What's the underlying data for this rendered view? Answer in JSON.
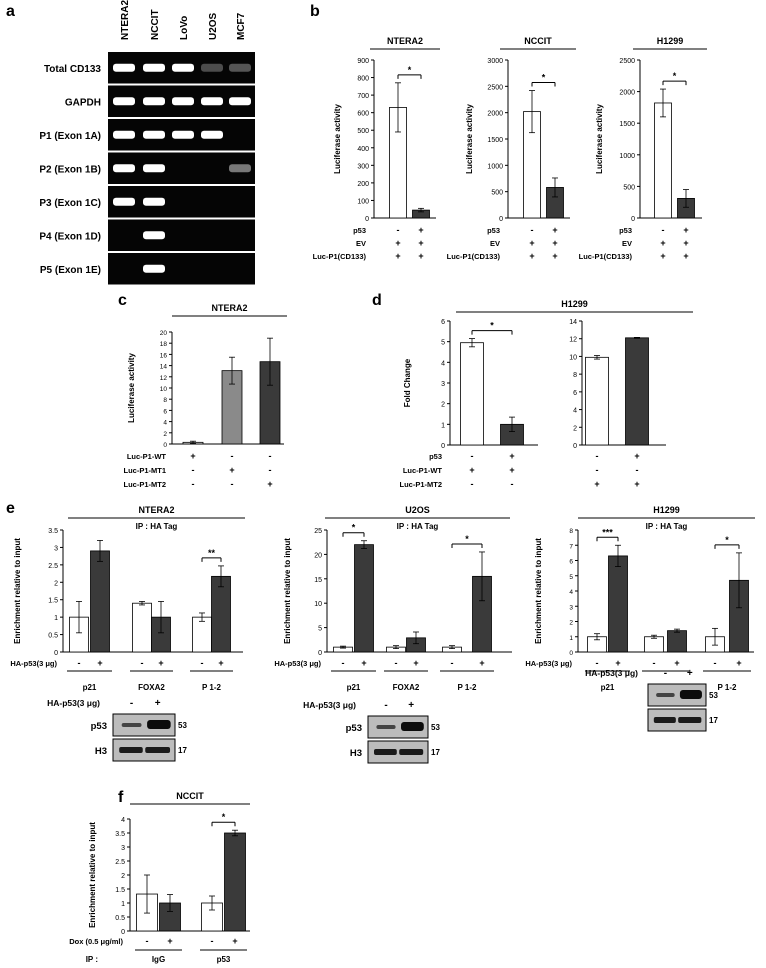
{
  "panels": {
    "a": {
      "label": "a",
      "lanes": [
        "NTERA2",
        "NCCIT",
        "LoVo",
        "U2OS",
        "MCF7"
      ],
      "rows": [
        "Total CD133",
        "GAPDH",
        "P1 (Exon 1A)",
        "P2 (Exon 1B)",
        "P3 (Exon 1C)",
        "P4 (Exon 1D)",
        "P5 (Exon 1E)"
      ],
      "band_intensity": [
        [
          1,
          1,
          1,
          0.35,
          0.4
        ],
        [
          1,
          1,
          1,
          1,
          1
        ],
        [
          1,
          1,
          1,
          1,
          0
        ],
        [
          1,
          1,
          0,
          0,
          0.55
        ],
        [
          1,
          1,
          0,
          0,
          0
        ],
        [
          0,
          1,
          0,
          0,
          0
        ],
        [
          0,
          1,
          0,
          0,
          0
        ]
      ]
    },
    "b": {
      "label": "b"
    },
    "c": {
      "label": "c"
    },
    "d": {
      "label": "d"
    },
    "e": {
      "label": "e"
    },
    "f": {
      "label": "f"
    }
  },
  "chart_data": [
    {
      "id": "b1",
      "type": "bar",
      "title": "NTERA2",
      "ylabel": "Luciferase activity",
      "ylim": [
        0,
        900
      ],
      "yticks": [
        0,
        100,
        200,
        300,
        400,
        500,
        600,
        700,
        800,
        900
      ],
      "values": [
        630,
        45
      ],
      "errors": [
        140,
        10
      ],
      "colors": [
        "#ffffff",
        "#3a3a3a"
      ],
      "significance": [
        {
          "from": 0,
          "to": 1,
          "label": "*"
        }
      ],
      "conditions": [
        {
          "label": "p53",
          "values": [
            "-",
            "+"
          ]
        },
        {
          "label": "EV",
          "values": [
            "+",
            "+"
          ]
        },
        {
          "label": "Luc-P1(CD133)",
          "values": [
            "+",
            "+"
          ]
        }
      ]
    },
    {
      "id": "b2",
      "type": "bar",
      "title": "NCCIT",
      "ylabel": "Luciferase activity",
      "ylim": [
        0,
        3000
      ],
      "yticks": [
        0,
        500,
        1000,
        1500,
        2000,
        2500,
        3000
      ],
      "values": [
        2020,
        580
      ],
      "errors": [
        400,
        180
      ],
      "colors": [
        "#ffffff",
        "#3a3a3a"
      ],
      "significance": [
        {
          "from": 0,
          "to": 1,
          "label": "*"
        }
      ],
      "conditions": [
        {
          "label": "p53",
          "values": [
            "-",
            "+"
          ]
        },
        {
          "label": "EV",
          "values": [
            "+",
            "+"
          ]
        },
        {
          "label": "Luc-P1(CD133)",
          "values": [
            "+",
            "+"
          ]
        }
      ]
    },
    {
      "id": "b3",
      "type": "bar",
      "title": "H1299",
      "ylabel": "Luciferase activity",
      "ylim": [
        0,
        2500
      ],
      "yticks": [
        0,
        500,
        1000,
        1500,
        2000,
        2500
      ],
      "values": [
        1820,
        310
      ],
      "errors": [
        220,
        140
      ],
      "colors": [
        "#ffffff",
        "#3a3a3a"
      ],
      "significance": [
        {
          "from": 0,
          "to": 1,
          "label": "*"
        }
      ],
      "conditions": [
        {
          "label": "p53",
          "values": [
            "-",
            "+"
          ]
        },
        {
          "label": "EV",
          "values": [
            "+",
            "+"
          ]
        },
        {
          "label": "Luc-P1(CD133)",
          "values": [
            "+",
            "+"
          ]
        }
      ]
    },
    {
      "id": "c",
      "type": "bar",
      "title": "NTERA2",
      "ylabel": "Luciferase activity",
      "ylim": [
        0,
        20
      ],
      "yticks": [
        0,
        2,
        4,
        6,
        8,
        10,
        12,
        14,
        16,
        18,
        20
      ],
      "values": [
        0.3,
        13.1,
        14.7
      ],
      "errors": [
        0.2,
        2.4,
        4.2
      ],
      "colors": [
        "#dddddd",
        "#8a8a8a",
        "#3a3a3a"
      ],
      "significance": [],
      "conditions": [
        {
          "label": "Luc-P1-WT",
          "values": [
            "+",
            "-",
            "-"
          ]
        },
        {
          "label": "Luc-P1-MT1",
          "values": [
            "-",
            "+",
            "-"
          ]
        },
        {
          "label": "Luc-P1-MT2",
          "values": [
            "-",
            "-",
            "+"
          ]
        }
      ]
    },
    {
      "id": "d1",
      "type": "bar",
      "title": "H1299",
      "ylabel": "Fold Change",
      "ylim": [
        0,
        6
      ],
      "yticks": [
        0,
        1,
        2,
        3,
        4,
        5,
        6
      ],
      "values": [
        4.95,
        1.0
      ],
      "errors": [
        0.2,
        0.35
      ],
      "colors": [
        "#ffffff",
        "#3a3a3a"
      ],
      "significance": [
        {
          "from": 0,
          "to": 1,
          "label": "*"
        }
      ]
    },
    {
      "id": "d2",
      "type": "bar",
      "title": "",
      "ylim": [
        0,
        14
      ],
      "yticks": [
        0,
        2,
        4,
        6,
        8,
        10,
        12,
        14
      ],
      "values": [
        9.9,
        12.1
      ],
      "errors": [
        0.2,
        0.05
      ],
      "colors": [
        "#ffffff",
        "#3a3a3a"
      ],
      "significance": [],
      "conditions": [
        {
          "label": "p53",
          "values": [
            "-",
            "+",
            "-",
            "+"
          ]
        },
        {
          "label": "Luc-P1-WT",
          "values": [
            "+",
            "+",
            "-",
            "-"
          ]
        },
        {
          "label": "Luc-P1-MT2",
          "values": [
            "-",
            "-",
            "+",
            "+"
          ]
        }
      ]
    },
    {
      "id": "e1",
      "type": "bar",
      "title": "NTERA2",
      "subtitle": "IP : HA Tag",
      "ylabel": "Enrichment relative to input",
      "ylim": [
        0,
        3.5
      ],
      "yticks": [
        0,
        0.5,
        1,
        1.5,
        2,
        2.5,
        3,
        3.5
      ],
      "groups": [
        "p21",
        "FOXA2",
        "P 1-2"
      ],
      "values": [
        [
          1.0,
          2.9
        ],
        [
          1.4,
          1.0
        ],
        [
          1.0,
          2.17
        ]
      ],
      "errors": [
        [
          0.45,
          0.3
        ],
        [
          0.05,
          0.45
        ],
        [
          0.12,
          0.3
        ]
      ],
      "colors": [
        "#ffffff",
        "#3a3a3a"
      ],
      "significance": [
        {
          "group": 2,
          "label": "**"
        }
      ],
      "xcond_label": "HA-p53(3 μg)",
      "xcond": [
        "-",
        "+"
      ]
    },
    {
      "id": "e2",
      "type": "bar",
      "title": "U2OS",
      "subtitle": "IP : HA Tag",
      "ylabel": "Enrichment relative to input",
      "ylim": [
        0,
        25
      ],
      "yticks": [
        0,
        5,
        10,
        15,
        20,
        25
      ],
      "groups": [
        "p21",
        "FOXA2",
        "P 1-2"
      ],
      "values": [
        [
          1.0,
          22.0
        ],
        [
          1.0,
          2.9
        ],
        [
          1.0,
          15.5
        ]
      ],
      "errors": [
        [
          0.2,
          0.8
        ],
        [
          0.3,
          1.2
        ],
        [
          0.3,
          5.0
        ]
      ],
      "colors": [
        "#ffffff",
        "#3a3a3a"
      ],
      "significance": [
        {
          "group": 0,
          "label": "*"
        },
        {
          "group": 2,
          "label": "*"
        }
      ],
      "xcond_label": "HA-p53(3 μg)",
      "xcond": [
        "-",
        "+"
      ]
    },
    {
      "id": "e3",
      "type": "bar",
      "title": "H1299",
      "subtitle": "IP : HA Tag",
      "ylabel": "Enrichment relative to input",
      "ylim": [
        0,
        8
      ],
      "yticks": [
        0,
        1,
        2,
        3,
        4,
        5,
        6,
        7,
        8
      ],
      "groups": [
        "p21",
        "FOXA2",
        "P 1-2"
      ],
      "values": [
        [
          1.0,
          6.3
        ],
        [
          1.0,
          1.4
        ],
        [
          1.0,
          4.7
        ]
      ],
      "errors": [
        [
          0.2,
          0.7
        ],
        [
          0.1,
          0.1
        ],
        [
          0.55,
          1.8
        ]
      ],
      "colors": [
        "#ffffff",
        "#3a3a3a"
      ],
      "significance": [
        {
          "group": 0,
          "label": "***"
        },
        {
          "group": 2,
          "label": "*"
        }
      ],
      "xcond_label": "HA-p53(3 μg)",
      "xcond": [
        "-",
        "+"
      ]
    },
    {
      "id": "f",
      "type": "bar",
      "title": "NCCIT",
      "ylabel": "Enrichment relative to input",
      "ylim": [
        0,
        4
      ],
      "yticks": [
        0,
        0.5,
        1,
        1.5,
        2,
        2.5,
        3,
        3.5,
        4
      ],
      "groups": [
        "IgG",
        "p53"
      ],
      "values": [
        [
          1.32,
          1.0
        ],
        [
          1.0,
          3.5
        ]
      ],
      "errors": [
        [
          0.68,
          0.3
        ],
        [
          0.25,
          0.1
        ]
      ],
      "colors": [
        "#ffffff",
        "#3a3a3a"
      ],
      "significance": [
        {
          "group": 1,
          "label": "*"
        }
      ],
      "xcond_label": "Dox (0.5 μg/ml)",
      "xcond": [
        "-",
        "+"
      ],
      "group_row_label": "IP :"
    }
  ],
  "blots": [
    {
      "id": "e1",
      "cond_label": "HA-p53(3 μg)",
      "cond": [
        "-",
        "+"
      ],
      "rows": [
        "p53",
        "H3"
      ],
      "mw": [
        "53",
        "17"
      ]
    },
    {
      "id": "e2",
      "cond_label": "HA-p53(3 μg)",
      "cond": [
        "-",
        "+"
      ],
      "rows": [
        "p53",
        "H3"
      ],
      "mw": [
        "53",
        "17"
      ]
    },
    {
      "id": "e3",
      "cond_label": "HA-p53(3 μg)",
      "cond": [
        "-",
        "+"
      ],
      "rows": [
        "",
        ""
      ],
      "mw": [
        "53",
        "17"
      ]
    }
  ]
}
